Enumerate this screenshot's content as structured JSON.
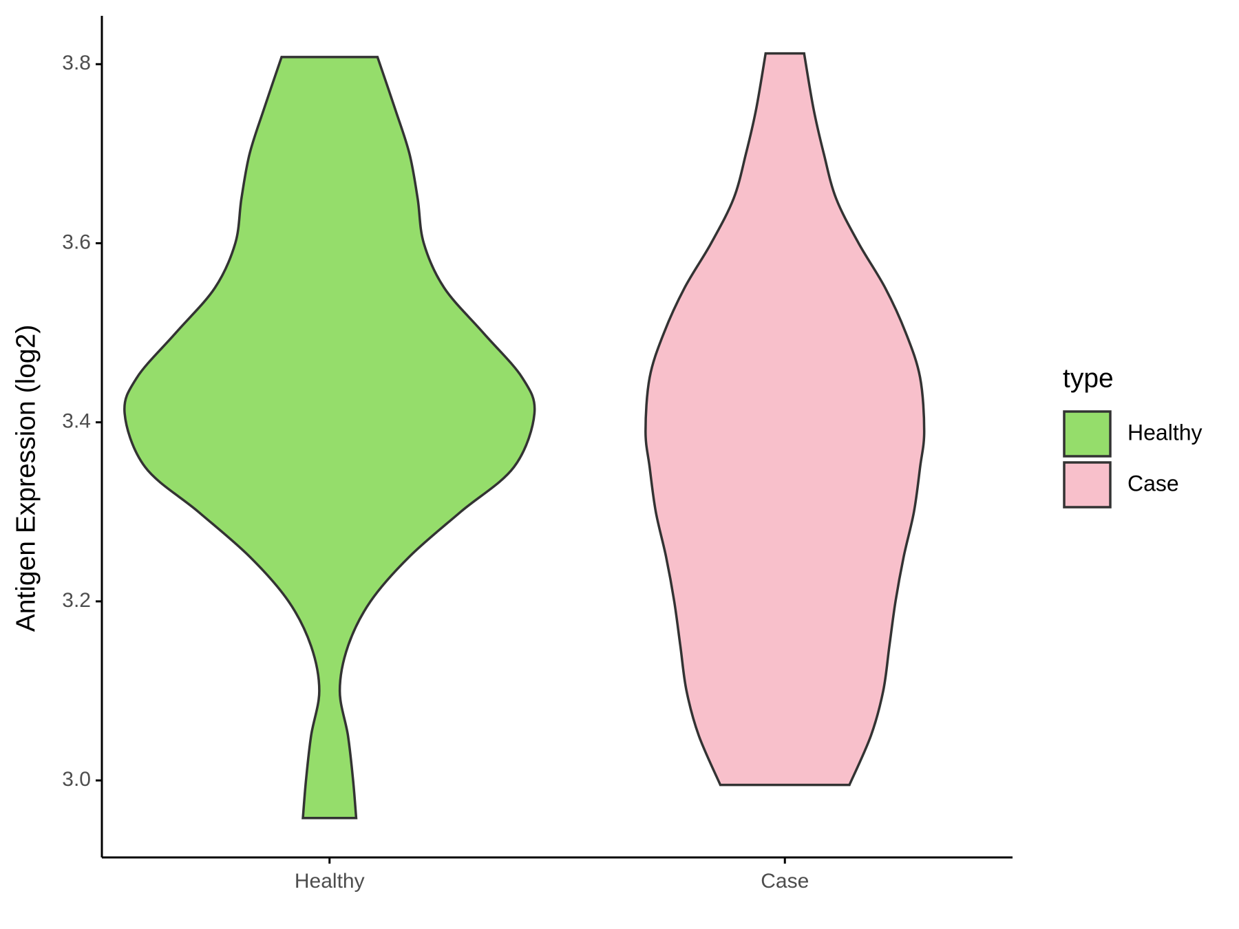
{
  "chart_data": {
    "type": "violin",
    "y_label": "Antigen Expression (log2)",
    "categories": [
      "Healthy",
      "Case"
    ],
    "legend_title": "type",
    "legend": "right",
    "ylim": [
      2.914,
      3.854
    ],
    "yticks": [
      {
        "value": 3.0,
        "label": "3.0"
      },
      {
        "value": 3.2,
        "label": "3.2"
      },
      {
        "value": 3.4,
        "label": "3.4"
      },
      {
        "value": 3.6,
        "label": "3.6"
      },
      {
        "value": 3.8,
        "label": "3.8"
      }
    ],
    "series": [
      {
        "name": "Healthy",
        "color": "#95dd6b",
        "y": [
          2.958,
          3.0,
          3.05,
          3.1,
          3.15,
          3.2,
          3.25,
          3.3,
          3.35,
          3.41,
          3.45,
          3.5,
          3.55,
          3.6,
          3.65,
          3.7,
          3.75,
          3.808
        ],
        "width": [
          0.13,
          0.115,
          0.09,
          0.05,
          0.09,
          0.2,
          0.39,
          0.64,
          0.9,
          1.0,
          0.94,
          0.75,
          0.56,
          0.46,
          0.43,
          0.39,
          0.32,
          0.234
        ]
      },
      {
        "name": "Case",
        "color": "#f8c0cb",
        "y": [
          2.995,
          3.05,
          3.1,
          3.15,
          3.2,
          3.25,
          3.3,
          3.35,
          3.39,
          3.45,
          3.5,
          3.55,
          3.6,
          3.65,
          3.7,
          3.75,
          3.812
        ],
        "width": [
          0.315,
          0.42,
          0.48,
          0.51,
          0.54,
          0.58,
          0.63,
          0.66,
          0.68,
          0.66,
          0.59,
          0.49,
          0.36,
          0.25,
          0.19,
          0.14,
          0.094
        ]
      }
    ]
  }
}
